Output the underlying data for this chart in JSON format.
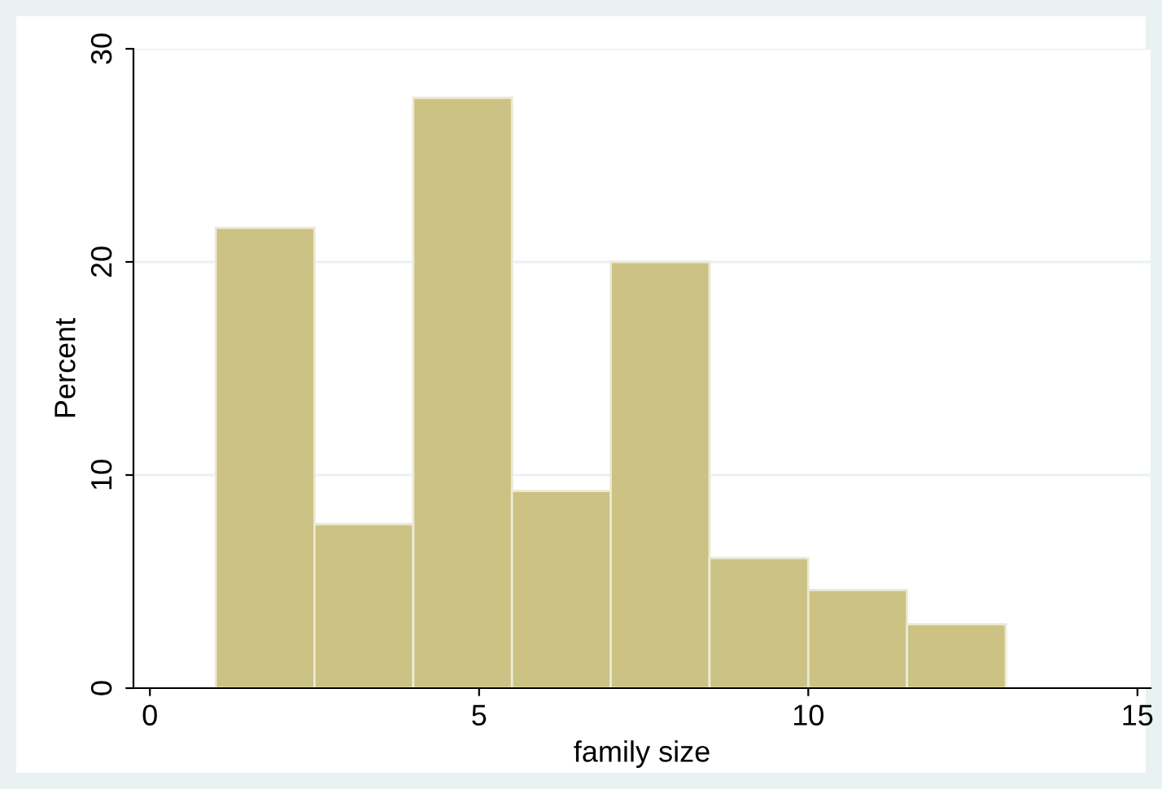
{
  "chart_data": {
    "type": "histogram",
    "xlabel": "family size",
    "ylabel": "Percent",
    "bins": [
      1,
      2.5,
      4,
      5.5,
      7,
      8.5,
      10,
      11.5,
      13
    ],
    "values": [
      21.6,
      7.7,
      27.7,
      9.25,
      20.0,
      6.1,
      4.6,
      3.0
    ],
    "color": "#cbc283",
    "xlim": [
      -0.25,
      15.2
    ],
    "xticks": [
      0,
      5,
      10,
      15
    ],
    "ylim": [
      0,
      30
    ],
    "yticks": [
      0,
      10,
      20,
      30
    ],
    "grid": "y"
  }
}
